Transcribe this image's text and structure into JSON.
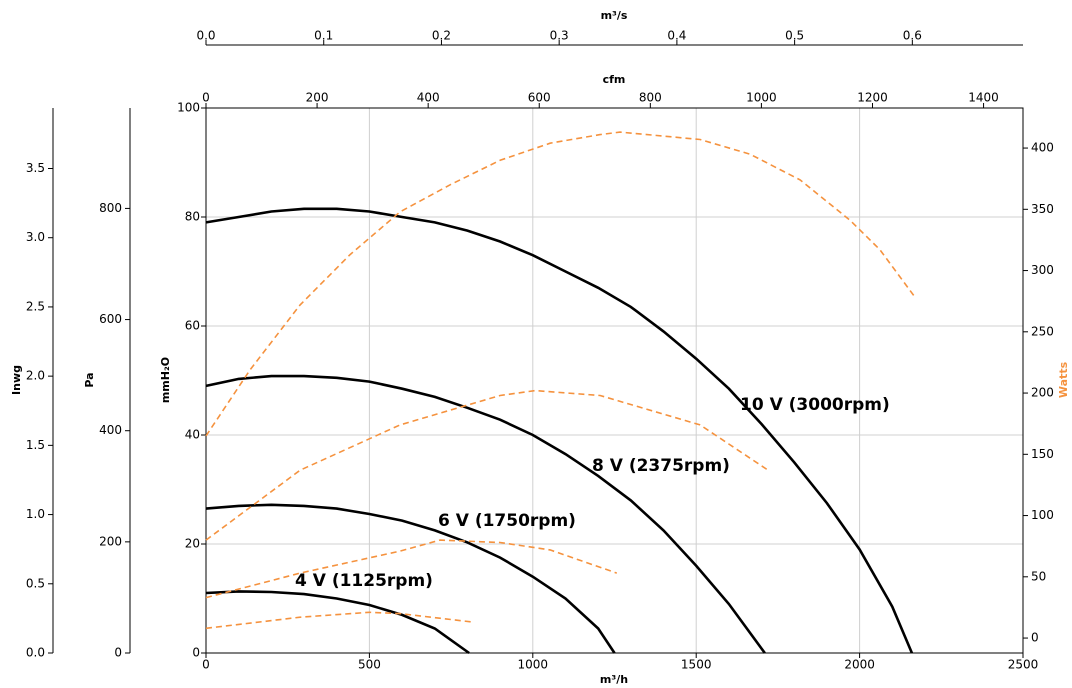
{
  "chart_data": {
    "type": "line",
    "xlabel": "m³/h",
    "xlim": [
      0,
      2500
    ],
    "xticks": [
      0,
      500,
      1000,
      1500,
      2000,
      2500
    ],
    "ylabel": "mmH₂O",
    "ylim": [
      0,
      100
    ],
    "yticks": [
      0,
      20,
      40,
      60,
      80,
      100
    ],
    "y2label": "Watts",
    "y2color": "#f5923e",
    "y2lim": [
      -12.2,
      432.7
    ],
    "y2ticks": [
      0,
      50,
      100,
      150,
      200,
      250,
      300,
      350,
      400
    ],
    "x2label": "cfm",
    "x2lim": [
      0,
      1471
    ],
    "x2ticks": [
      0,
      200,
      400,
      600,
      800,
      1000,
      1200,
      1400
    ],
    "x3label": "m³/s",
    "x3lim": [
      0,
      0.694
    ],
    "x3ticks": [
      {
        "value": 0,
        "label": "0.0"
      },
      0.1,
      0.2,
      0.3,
      0.4,
      0.5,
      0.6
    ],
    "y3label": "Pa",
    "y3lim": [
      0,
      980.7
    ],
    "y3ticks": [
      0,
      200,
      400,
      600,
      800
    ],
    "y4label": "Inwg",
    "y4lim": [
      0,
      3.937
    ],
    "y4ticks": [
      {
        "value": 0,
        "label": "0.0"
      },
      0.5,
      {
        "value": 1,
        "label": "1.0"
      },
      1.5,
      {
        "value": 2,
        "label": "2.0"
      },
      2.5,
      {
        "value": 3,
        "label": "3.0"
      },
      3.5
    ],
    "grid": true,
    "series": [
      {
        "name": "10 V (3000rpm)",
        "color": "#000000",
        "x": [
          0,
          100,
          200,
          300,
          400,
          500,
          600,
          700,
          800,
          900,
          1000,
          1100,
          1200,
          1300,
          1400,
          1500,
          1600,
          1700,
          1800,
          1900,
          2000,
          2100,
          2160
        ],
        "values": [
          79,
          80,
          81,
          81.5,
          81.5,
          81,
          80,
          79,
          77.5,
          75.5,
          73,
          70,
          67,
          63.5,
          59,
          54,
          48.5,
          42,
          35,
          27.5,
          19,
          8.5,
          0
        ]
      },
      {
        "name": "8 V (2375rpm)",
        "color": "#000000",
        "x": [
          0,
          100,
          200,
          300,
          400,
          500,
          600,
          700,
          800,
          900,
          1000,
          1100,
          1200,
          1300,
          1400,
          1500,
          1600,
          1710
        ],
        "values": [
          49,
          50.3,
          50.8,
          50.8,
          50.5,
          49.8,
          48.5,
          47,
          45,
          42.8,
          40,
          36.5,
          32.5,
          28,
          22.5,
          16,
          9,
          0
        ]
      },
      {
        "name": "6 V (1750rpm)",
        "color": "#000000",
        "x": [
          0,
          100,
          200,
          300,
          400,
          500,
          600,
          700,
          800,
          900,
          1000,
          1100,
          1200,
          1250
        ],
        "values": [
          26.5,
          27,
          27.2,
          27,
          26.5,
          25.5,
          24.3,
          22.5,
          20.3,
          17.5,
          14,
          10,
          4.5,
          0
        ]
      },
      {
        "name": "4 V (1125rpm)",
        "color": "#000000",
        "x": [
          0,
          100,
          200,
          300,
          400,
          500,
          600,
          700,
          805
        ],
        "values": [
          11,
          11.3,
          11.2,
          10.8,
          10,
          8.8,
          7,
          4.5,
          0
        ]
      },
      {
        "color": "#f5923e",
        "axis": "y2",
        "dashed": true,
        "x": [
          0,
          135,
          288,
          441,
          594,
          747,
          900,
          1053,
          1206,
          1267,
          1512,
          1665,
          1818,
          1971,
          2062,
          2170
        ],
        "values": [
          165,
          219,
          272,
          313,
          348,
          370,
          390,
          404,
          411,
          413,
          407,
          395,
          374,
          341,
          317,
          278
        ]
      },
      {
        "color": "#f5923e",
        "axis": "y2",
        "dashed": true,
        "x": [
          0,
          288,
          594,
          900,
          1007,
          1206,
          1512,
          1720
        ],
        "values": [
          80,
          137,
          174,
          198,
          202,
          198,
          174,
          137
        ]
      },
      {
        "color": "#f5923e",
        "axis": "y2",
        "dashed": true,
        "x": [
          0,
          288,
          594,
          716,
          900,
          1053,
          1257
        ],
        "values": [
          33,
          53,
          71,
          80,
          78,
          72,
          53
        ]
      },
      {
        "color": "#f5923e",
        "axis": "y2",
        "dashed": true,
        "x": [
          0,
          288,
          500,
          594,
          817
        ],
        "values": [
          8,
          17,
          21,
          20,
          13
        ]
      }
    ]
  }
}
